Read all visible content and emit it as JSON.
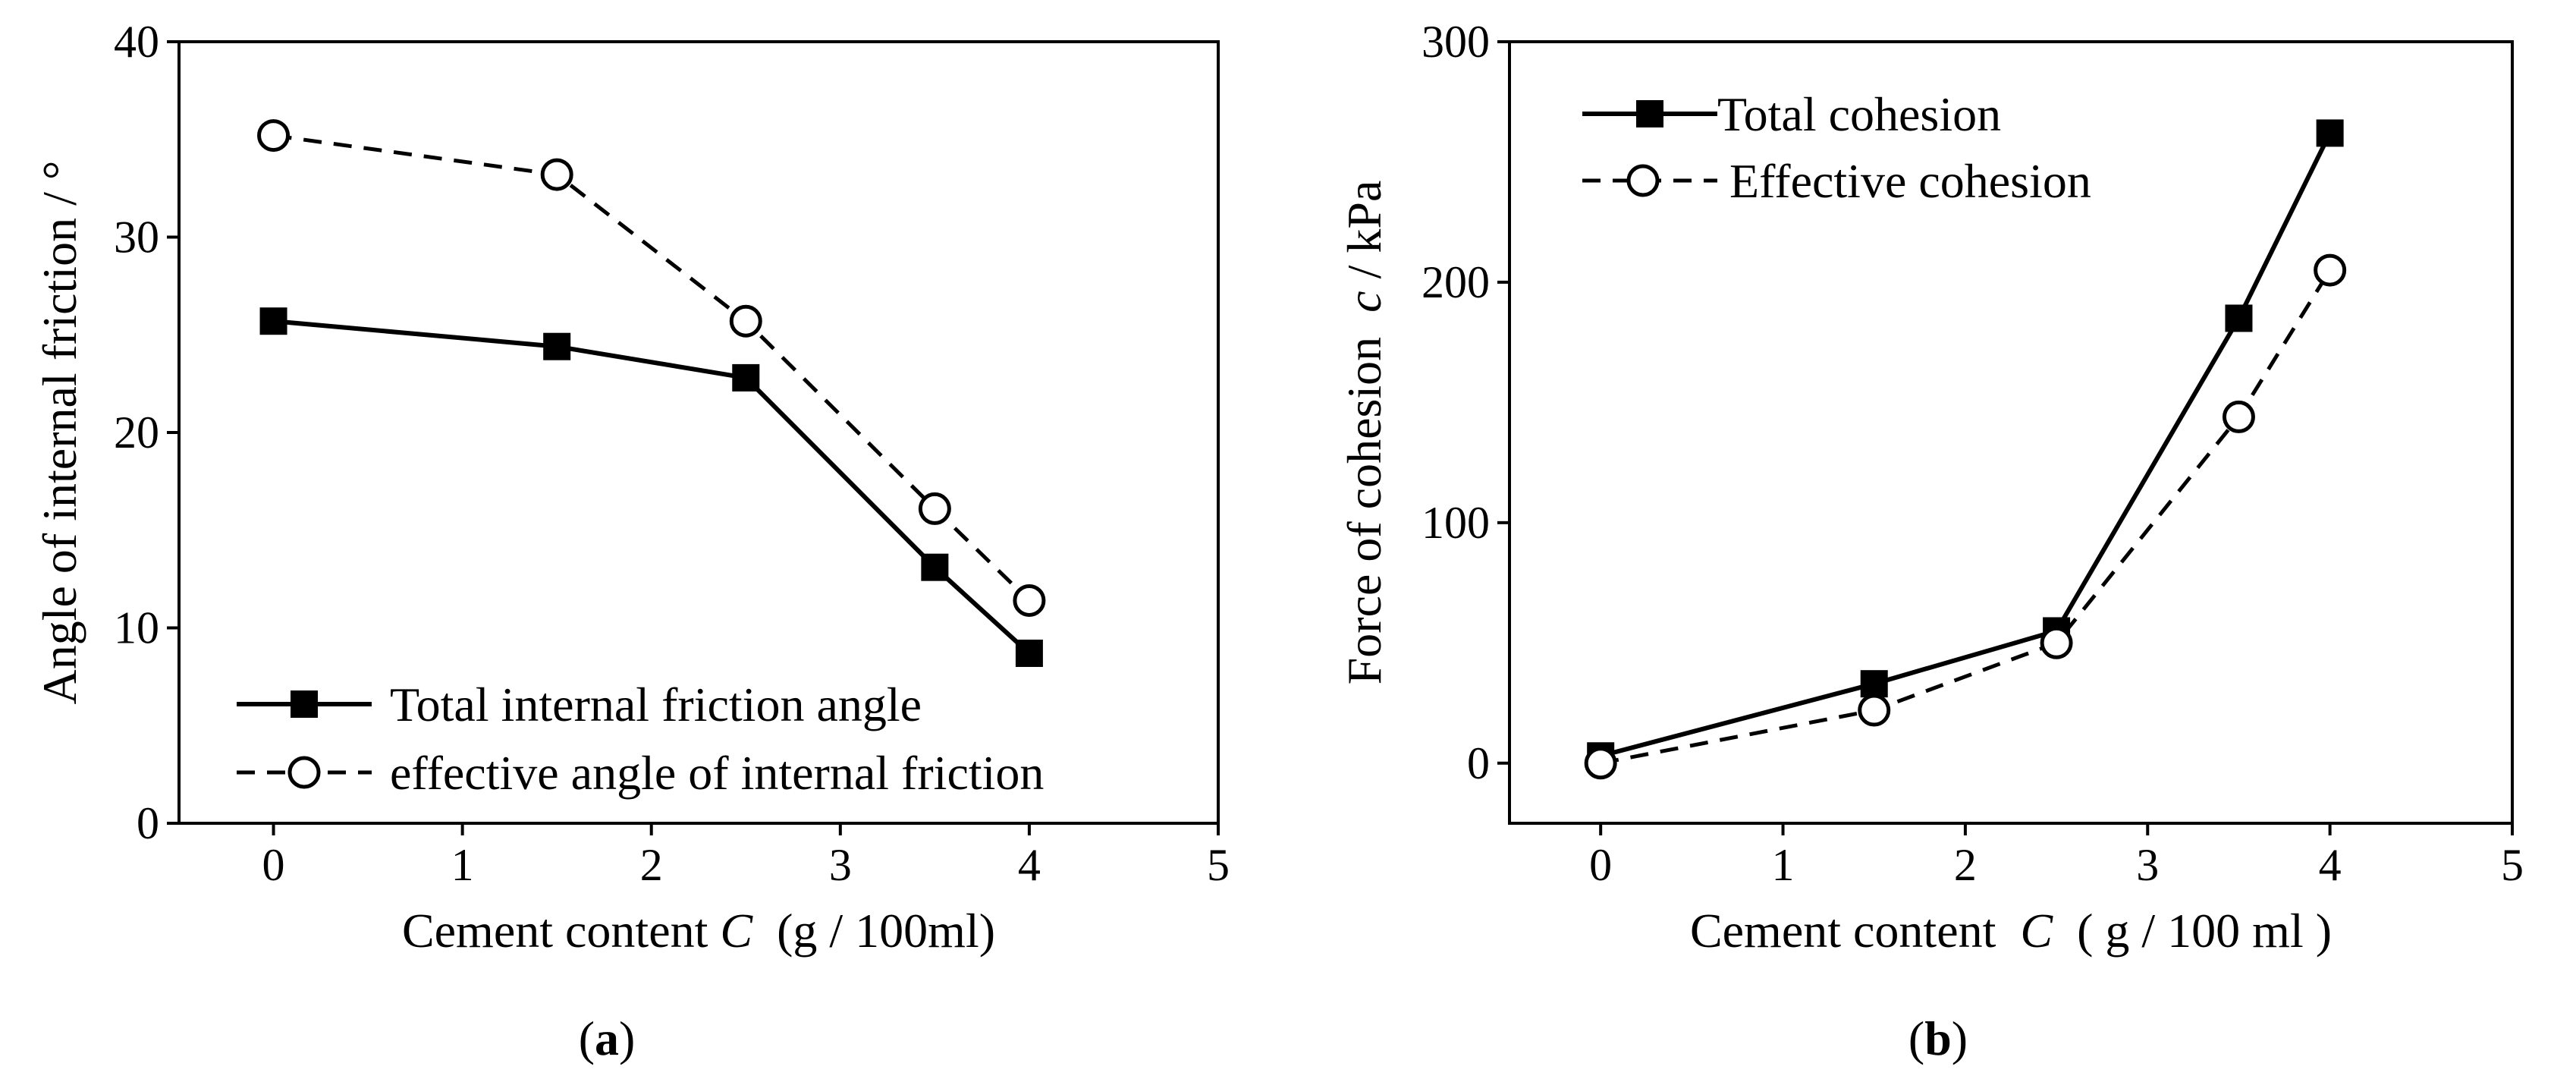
{
  "figure": {
    "panels": [
      {
        "label": "a",
        "caption_open": "(",
        "caption_close": ")"
      },
      {
        "label": "b",
        "caption_open": "(",
        "caption_close": ")"
      }
    ]
  },
  "chart_data": [
    {
      "type": "line",
      "panel": "a",
      "xlabel_prefix": "Cement content ",
      "xlabel_var": "C",
      "xlabel_suffix": "  (g / 100ml)",
      "ylabel": "Angle of internal friction / °",
      "xlim": [
        -0.5,
        5
      ],
      "ylim": [
        0,
        40
      ],
      "xticks": [
        0,
        1,
        2,
        3,
        4,
        5
      ],
      "yticks": [
        0,
        10,
        20,
        30,
        40
      ],
      "legend_position": "bottom-left",
      "series": [
        {
          "name": "Total internal friction angle",
          "style": "solid",
          "marker": "filled-square",
          "x": [
            0,
            1.5,
            2.5,
            3.5,
            4
          ],
          "y": [
            25.7,
            24.4,
            22.8,
            13.1,
            8.7
          ]
        },
        {
          "name": "effective angle of internal friction",
          "style": "dashed",
          "marker": "open-circle",
          "x": [
            0,
            1.5,
            2.5,
            3.5,
            4
          ],
          "y": [
            35.2,
            33.2,
            25.7,
            16.1,
            11.4
          ]
        }
      ]
    },
    {
      "type": "line",
      "panel": "b",
      "xlabel_prefix": "Cement content  ",
      "xlabel_var": "C",
      "xlabel_suffix": "  ( g / 100 ml )",
      "ylabel_prefix": "Force of cohesion  ",
      "ylabel_var": "c",
      "ylabel_suffix": " / kPa",
      "xlim": [
        -0.5,
        5
      ],
      "ylim": [
        -25,
        300
      ],
      "xticks": [
        0,
        1,
        2,
        3,
        4,
        5
      ],
      "yticks": [
        0,
        100,
        200,
        300
      ],
      "legend_position": "top-left",
      "series": [
        {
          "name": "Total cohesion",
          "style": "solid",
          "marker": "filled-square",
          "x": [
            0,
            1.5,
            2.5,
            3.5,
            4
          ],
          "y": [
            3,
            33,
            55,
            185,
            262
          ]
        },
        {
          "name": "Effective cohesion",
          "style": "dashed",
          "marker": "open-circle",
          "x": [
            0,
            1.5,
            2.5,
            3.5,
            4
          ],
          "y": [
            0,
            22,
            50,
            144,
            205
          ]
        }
      ]
    }
  ]
}
